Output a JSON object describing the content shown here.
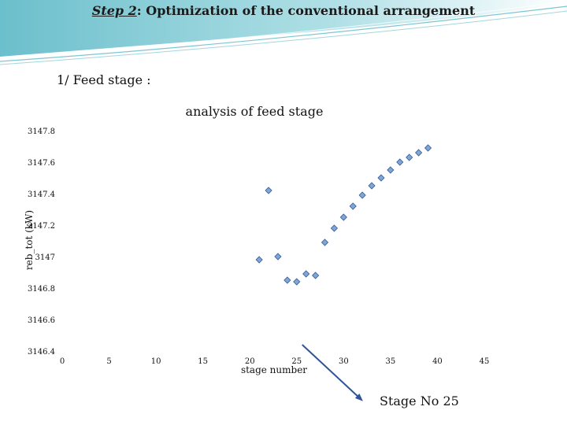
{
  "slide": {
    "step_prefix": "Step 2",
    "title_rest": ": Optimization of the conventional arrangement",
    "section": "1/ Feed stage :",
    "callout": "Stage No 25"
  },
  "colors": {
    "header_band": "#6fc3cf",
    "marker_fill": "#7fa7d6",
    "marker_stroke": "#2f5597",
    "arrow": "#2f5597"
  },
  "chart_data": {
    "type": "scatter",
    "title": "analysis of feed stage",
    "xlabel": "stage number",
    "ylabel": "reb_tot (kW)",
    "xlim": [
      0,
      45
    ],
    "ylim": [
      3146.4,
      3147.8
    ],
    "xticks": [
      0,
      5,
      10,
      15,
      20,
      25,
      30,
      35,
      40,
      45
    ],
    "yticks": [
      3146.4,
      3146.6,
      3146.8,
      3147,
      3147.2,
      3147.4,
      3147.6,
      3147.8
    ],
    "ytick_labels": [
      "3146.4",
      "3146.6",
      "3146.8",
      "3147",
      "3147.2",
      "3147.4",
      "3147.6",
      "3147.8"
    ],
    "grid": false,
    "series": [
      {
        "name": "reb_tot",
        "points": [
          [
            21,
            3146.98
          ],
          [
            22,
            3147.42
          ],
          [
            23,
            3147.0
          ],
          [
            24,
            3146.85
          ],
          [
            25,
            3146.84
          ],
          [
            26,
            3146.89
          ],
          [
            27,
            3146.88
          ],
          [
            28,
            3147.09
          ],
          [
            29,
            3147.18
          ],
          [
            30,
            3147.25
          ],
          [
            31,
            3147.32
          ],
          [
            32,
            3147.39
          ],
          [
            33,
            3147.45
          ],
          [
            34,
            3147.5
          ],
          [
            35,
            3147.55
          ],
          [
            36,
            3147.6
          ],
          [
            37,
            3147.63
          ],
          [
            38,
            3147.66
          ],
          [
            39,
            3147.69
          ]
        ]
      }
    ],
    "annotation": {
      "label": "Stage No 25",
      "points_to": [
        25,
        3146.4
      ]
    }
  }
}
